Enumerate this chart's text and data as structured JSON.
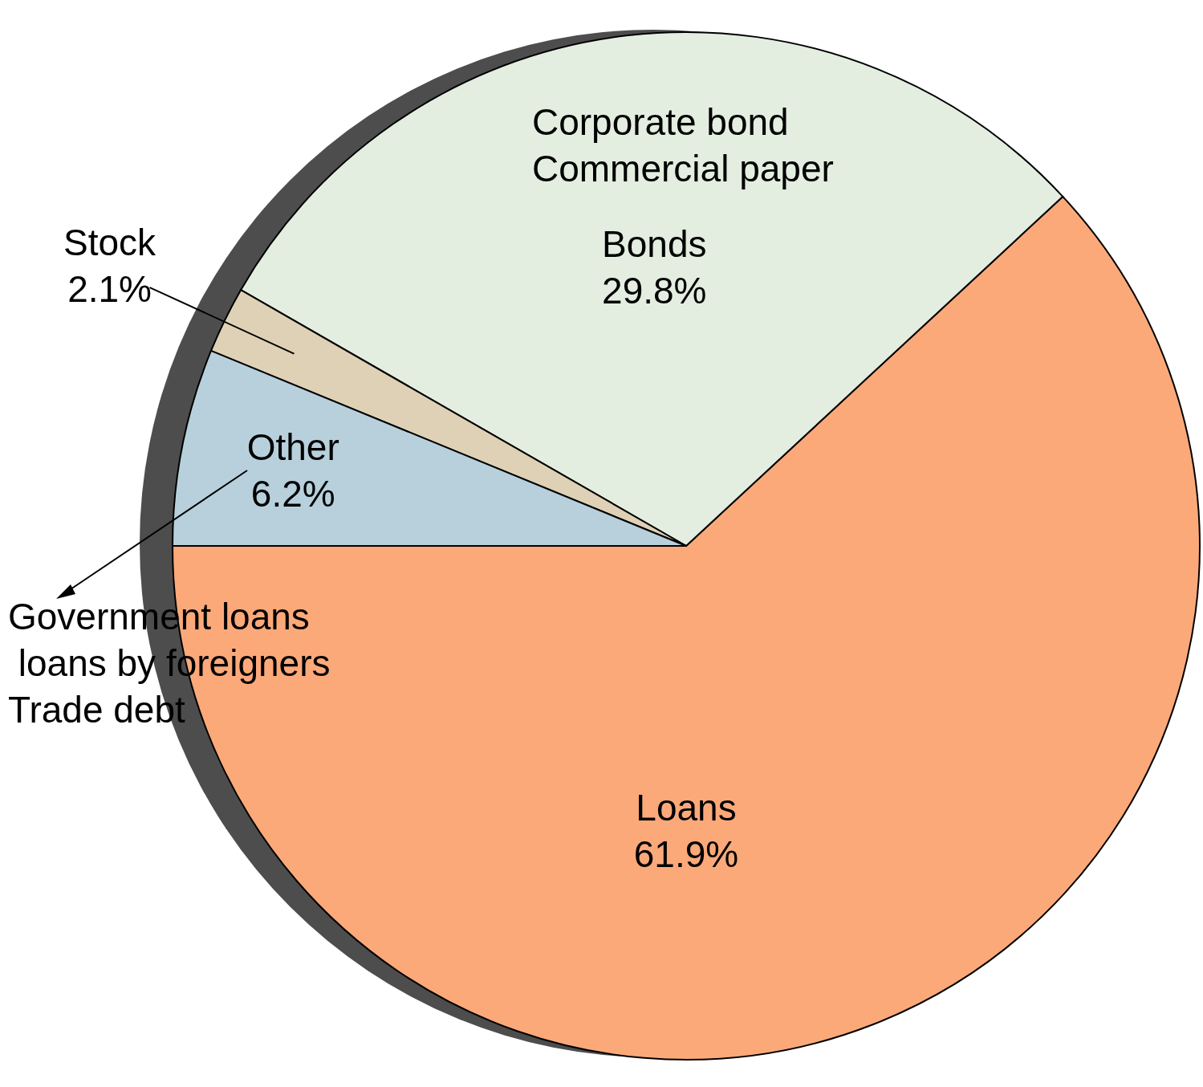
{
  "chart_data": {
    "type": "pie",
    "categories": [
      "Loans",
      "Bonds",
      "Stock",
      "Other"
    ],
    "values": [
      61.9,
      29.8,
      2.1,
      6.2
    ],
    "value_labels": [
      "61.9%",
      "29.8%",
      "2.1%",
      "6.2%"
    ],
    "colors": [
      "#fca97a",
      "#e3ede0",
      "#dfd1b6",
      "#b7d0dc"
    ],
    "annotations": [
      "Corporate bond\nCommercial paper",
      "Government loans\n loans by foreigners\nTrade debt"
    ],
    "legend": false
  }
}
